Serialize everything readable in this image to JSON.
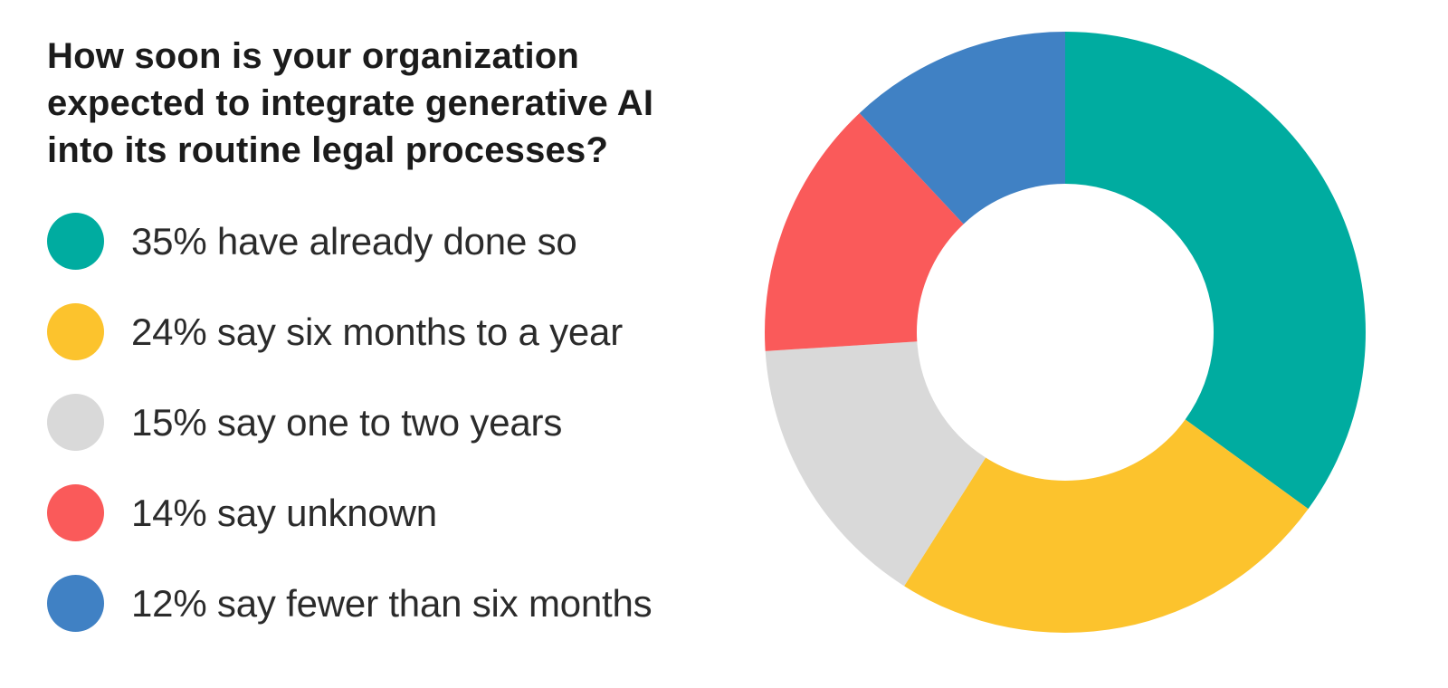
{
  "page": {
    "background": "#ffffff"
  },
  "header": {
    "title_lines": [
      "How soon is your organization",
      "expected to integrate generative AI",
      "into its routine legal processes?"
    ]
  },
  "legend": {
    "items": [
      {
        "label": "35% have already done so",
        "color": "#00ACA0"
      },
      {
        "label": "24% say six months to a year",
        "color": "#FCC32D"
      },
      {
        "label": "15% say one to two years",
        "color": "#D9D9D9"
      },
      {
        "label": "14% say unknown",
        "color": "#FA5A5A"
      },
      {
        "label": "12% say fewer than six months",
        "color": "#4081C4"
      }
    ]
  },
  "chart_data": {
    "type": "pie",
    "subtype": "donut",
    "title": "How soon is your organization expected to integrate generative AI into its routine legal processes?",
    "categories": [
      "have already done so",
      "six months to a year",
      "one to two years",
      "unknown",
      "fewer than six months"
    ],
    "values": [
      35,
      24,
      15,
      14,
      12
    ],
    "unit": "%",
    "colors": [
      "#00ACA0",
      "#FCC32D",
      "#D9D9D9",
      "#FA5A5A",
      "#4081C4"
    ],
    "start_angle_deg": 0,
    "direction": "clockwise",
    "inner_radius_ratio": 0.494,
    "hole_color": "#ffffff",
    "legend_position": "left",
    "title_color": "#1b1b1b",
    "text_color": "#2b2b2b"
  }
}
